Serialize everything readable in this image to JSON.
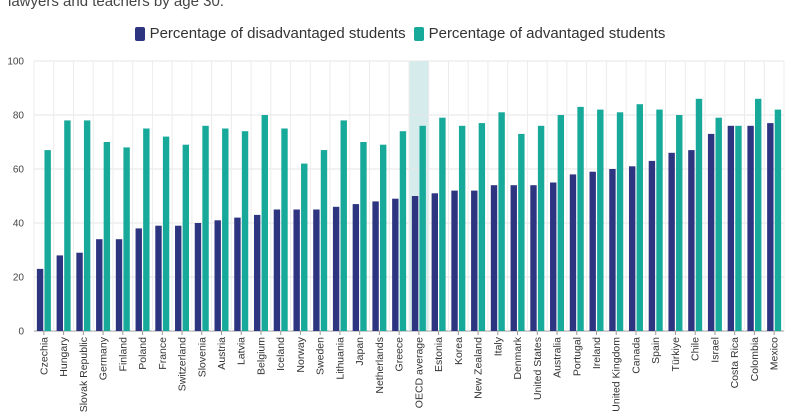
{
  "chart_data": {
    "type": "bar",
    "subtitle": "lawyers and teachers by age 30.",
    "categories": [
      "Czechia",
      "Hungary",
      "Slovak Republic",
      "Germany",
      "Finland",
      "Poland",
      "France",
      "Switzerland",
      "Slovenia",
      "Austria",
      "Latvia",
      "Belgium",
      "Iceland",
      "Norway",
      "Sweden",
      "Lithuania",
      "Japan",
      "Netherlands",
      "Greece",
      "OECD average",
      "Estonia",
      "Korea",
      "New Zealand",
      "Italy",
      "Denmark",
      "United States",
      "Australia",
      "Portugal",
      "Ireland",
      "United Kingdom",
      "Canada",
      "Spain",
      "Türkiye",
      "Chile",
      "Israel",
      "Costa Rica",
      "Colombia",
      "Mexico"
    ],
    "highlight_category": "OECD average",
    "series": [
      {
        "name": "Percentage of disadvantaged students",
        "color": "#2e3580",
        "values": [
          23,
          28,
          29,
          34,
          34,
          38,
          39,
          39,
          40,
          41,
          42,
          43,
          45,
          45,
          45,
          46,
          47,
          48,
          49,
          50,
          51,
          52,
          52,
          54,
          54,
          54,
          55,
          58,
          59,
          60,
          61,
          63,
          66,
          67,
          73,
          76,
          76,
          77
        ]
      },
      {
        "name": "Percentage of advantaged students",
        "color": "#17a99a",
        "values": [
          67,
          78,
          78,
          70,
          68,
          75,
          72,
          69,
          76,
          75,
          74,
          80,
          75,
          62,
          67,
          78,
          70,
          69,
          74,
          76,
          79,
          76,
          77,
          81,
          73,
          76,
          80,
          83,
          82,
          81,
          84,
          82,
          80,
          86,
          79,
          76,
          86,
          82
        ]
      }
    ],
    "yticks": [
      0,
      20,
      40,
      60,
      80,
      100
    ],
    "ylim": [
      0,
      100
    ],
    "xlabel": "",
    "ylabel": "",
    "grid": true
  }
}
